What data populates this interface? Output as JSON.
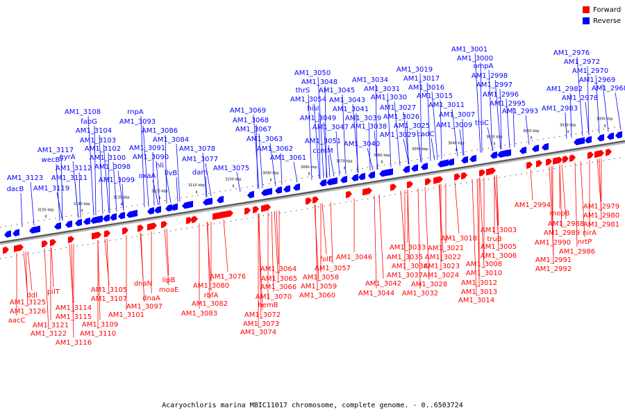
{
  "legend": [
    {
      "label": "Forward",
      "color": "#ff0000"
    },
    {
      "label": "Reverse",
      "color": "#0000ff"
    }
  ],
  "caption": "Acaryochloris marina MBIC11017 chromosome, complete genome. - 0..6503724",
  "axis": {
    "tick_labels": [
      "3150 kbp",
      "3140 kbp",
      "3130 kbp",
      "3120 kbp",
      "3110 kbp",
      "3100 kbp",
      "3090 kbp",
      "3080 kbp",
      "3070 kbp",
      "3060 kbp",
      "3050 kbp",
      "3040 kbp",
      "3030 kbp",
      "3020 kbp",
      "3010 kbp",
      "3000 kbp"
    ]
  },
  "colors": {
    "forward": "#ff0000",
    "reverse": "#0000ff",
    "axis": "#555555"
  },
  "reverse_genes": [
    "dacB",
    "AM1_3123",
    "AM1_3119",
    "AM1_3117",
    "wecB",
    "gyrA",
    "AM1_3112",
    "AM1_3111",
    "AM1_3108",
    "fabG",
    "AM1_3104",
    "AM1_3103",
    "AM1_3102",
    "AM1_3100",
    "AM1_3098",
    "AM1_3099",
    "rnpA",
    "AM1_3093",
    "AM1_3091",
    "AM1_3090",
    "oxaA",
    "AM1_3086",
    "AM1_3084",
    "hli",
    "ilvB",
    "AM1_3078",
    "AM1_3077",
    "dam",
    "AM1_3075",
    "AM1_3069",
    "AM1_3068",
    "AM1_3067",
    "AM1_3063",
    "AM1_3062",
    "AM1_3061",
    "AM1_3050",
    "AM1_3048",
    "thrS",
    "AM1_3054",
    "hisI",
    "AM1_3049",
    "AM1_3051",
    "ccmM",
    "AM1_3045",
    "AM1_3043",
    "AM1_3041",
    "AM1_3047",
    "AM1_3040",
    "AM1_3034",
    "AM1_3031",
    "AM1_3030",
    "AM1_3039",
    "AM1_3038",
    "AM1_3027",
    "AM1_3026",
    "AM1_3025",
    "AM1_3029",
    "AM1_3019",
    "AM1_3017",
    "AM1_3016",
    "AM1_3015",
    "cadC",
    "AM1_3011",
    "AM1_3007",
    "AM1_3009",
    "AM1_3001",
    "AM1_3000",
    "ompA",
    "AM1_2998",
    "AM1_2997",
    "AM1_2996",
    "thiC",
    "AM1_2995",
    "AM1_2993",
    "AM1_2976",
    "AM1_2972",
    "AM1_2970",
    "AM1_2969",
    "AM1_2982",
    "AM1_2978",
    "AM1_2968",
    "AM1_2983"
  ],
  "forward_genes": [
    "AM1_3125",
    "AM1_3126",
    "aacC",
    "ddl",
    "pilT",
    "AM1_3121",
    "AM1_3122",
    "AM1_3116",
    "AM1_3114",
    "AM1_3115",
    "AM1_3109",
    "AM1_3110",
    "AM1_3105",
    "AM1_3107",
    "AM1_3101",
    "AM1_3097",
    "dnaN",
    "dnaA",
    "moaE",
    "lipB",
    "AM1_3080",
    "rbfA",
    "AM1_3082",
    "AM1_3083",
    "AM1_3076",
    "AM1_3064",
    "AM1_3065",
    "AM1_3066",
    "AM1_3070",
    "hemB",
    "AM1_3072",
    "AM1_3073",
    "AM1_3074",
    "folE",
    "AM1_3057",
    "AM1_3058",
    "AM1_3059",
    "AM1_3060",
    "AM1_3046",
    "AM1_3042",
    "AM1_3044",
    "AM1_3033",
    "AM1_3035",
    "AM1_3036",
    "AM1_3037",
    "AM1_3028",
    "AM1_3032",
    "AM1_3021",
    "AM1_3022",
    "AM1_3023",
    "AM1_3024",
    "AM1_3018",
    "AM1_3003",
    "truB",
    "AM1_3005",
    "AM1_3006",
    "AM1_3008",
    "AM1_3010",
    "AM1_3012",
    "AM1_3013",
    "AM1_3014",
    "AM1_2994",
    "mopB",
    "AM1_2988",
    "AM1_2989",
    "AM1_2990",
    "AM1_2991",
    "AM1_2992",
    "nirA",
    "nrtP",
    "AM1_2986",
    "AM1_2979",
    "AM1_2980",
    "AM1_2981"
  ]
}
